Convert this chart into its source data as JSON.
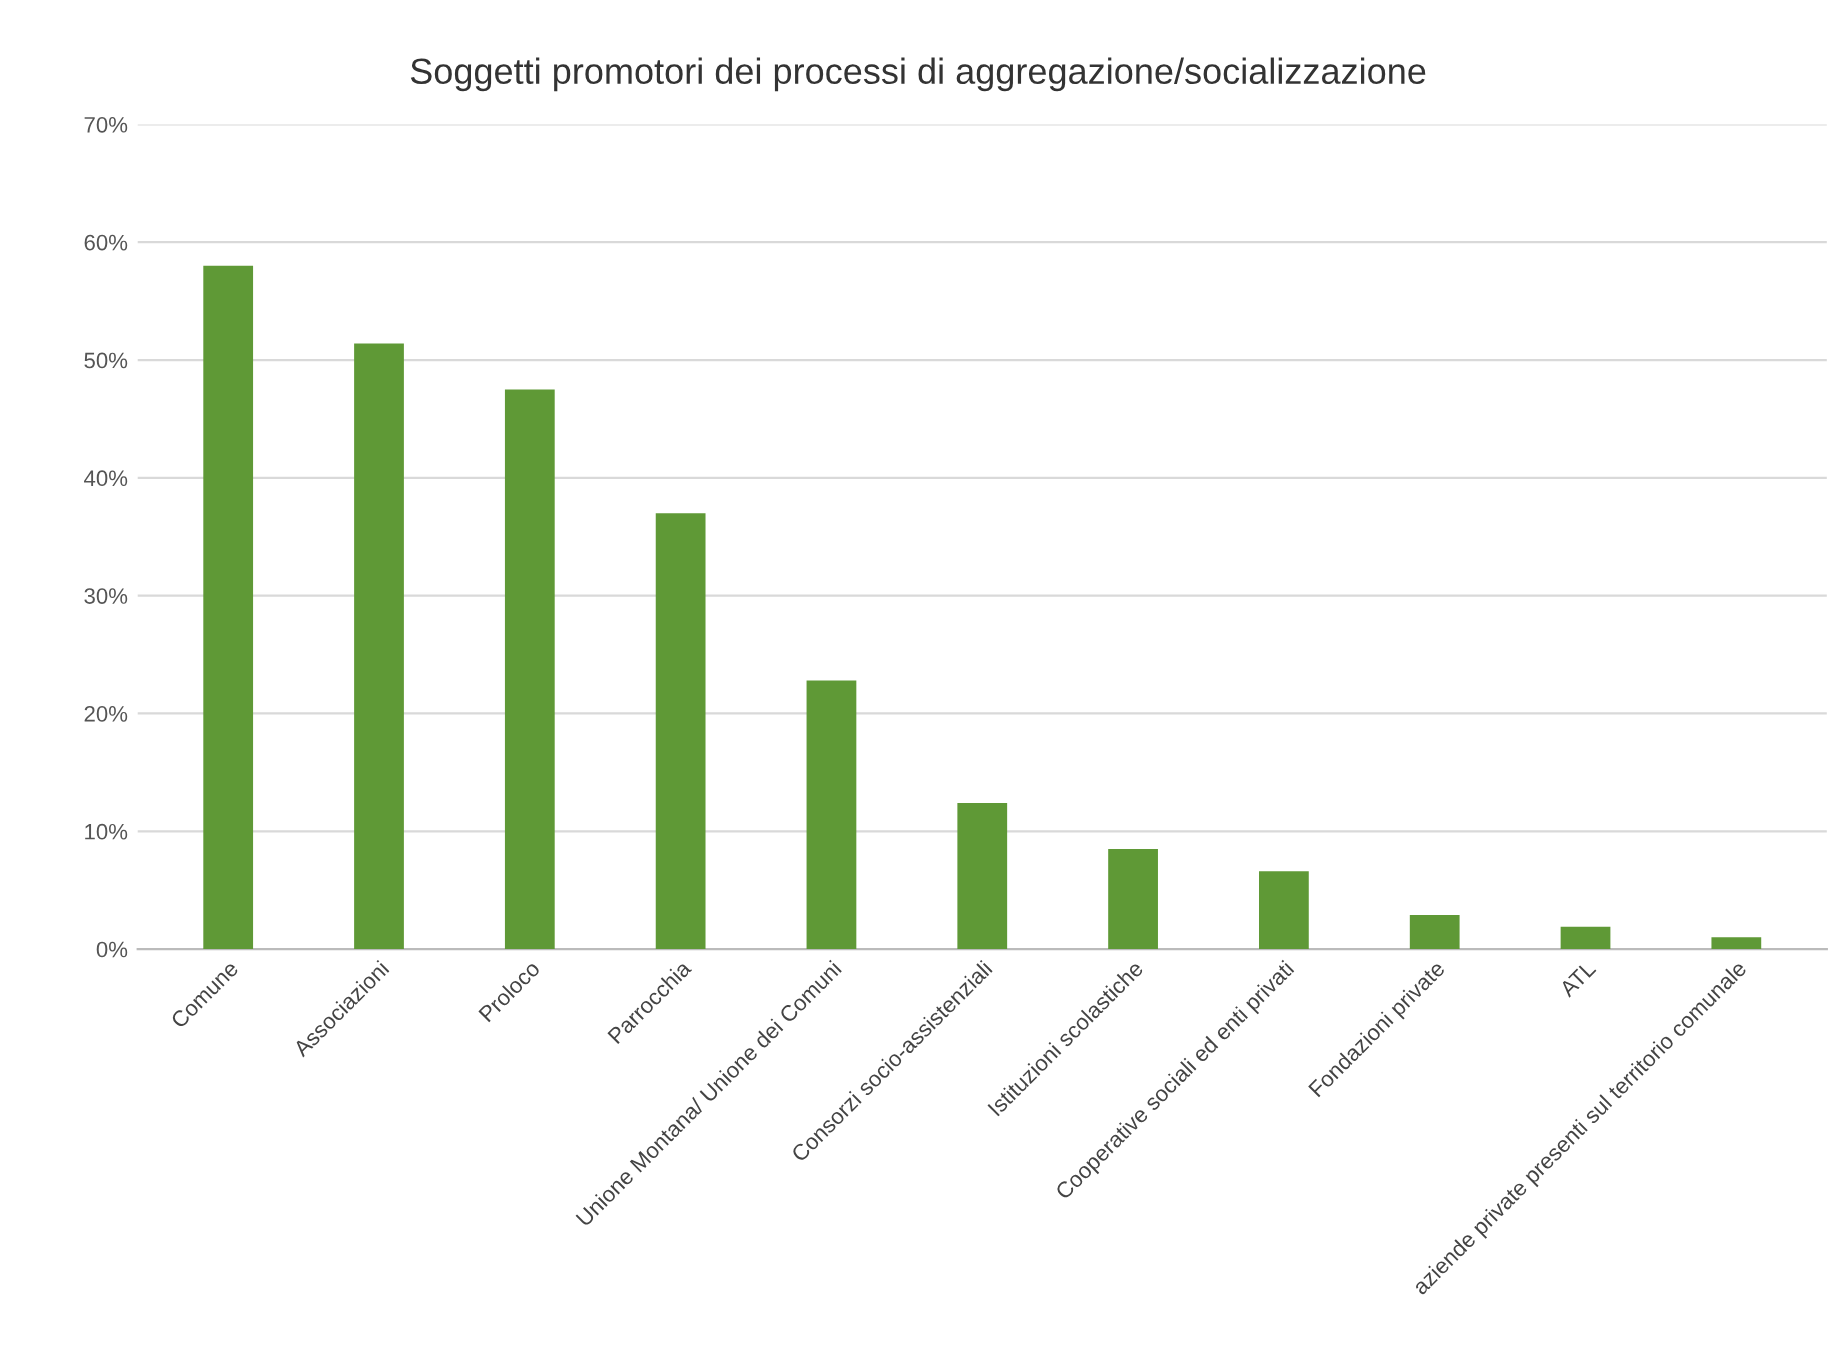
{
  "chart_data": {
    "type": "bar",
    "title": "Soggetti promotori dei processi di aggregazione/socializzazione",
    "categories": [
      "Comune",
      "Associazioni",
      "Proloco",
      "Parrocchia",
      "Unione Montana/ Unione dei Comuni",
      "Consorzi socio-assistenziali",
      "Istituzioni scolastiche",
      "Cooperative sociali ed enti privati",
      "Fondazioni private",
      "ATL",
      "aziende private presenti sul territorio comunale"
    ],
    "values": [
      58,
      51.4,
      47.5,
      37,
      22.8,
      12.4,
      8.5,
      6.6,
      2.9,
      1.9,
      1
    ],
    "color": "#5f9936",
    "ylim": [
      0,
      70
    ],
    "yticks": [
      {
        "value": 0,
        "label": "0%"
      },
      {
        "value": 10,
        "label": "10%"
      },
      {
        "value": 20,
        "label": "20%"
      },
      {
        "value": 30,
        "label": "30%"
      },
      {
        "value": 40,
        "label": "40%"
      },
      {
        "value": 50,
        "label": "50%"
      },
      {
        "value": 60,
        "label": "60%"
      },
      {
        "value": 70,
        "label": "70%"
      }
    ],
    "grid": "y",
    "legend": false
  }
}
